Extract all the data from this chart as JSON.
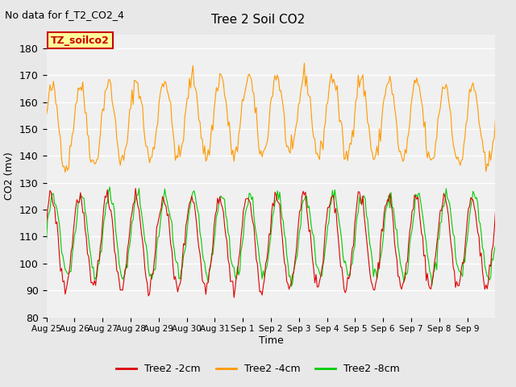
{
  "title": "Tree 2 Soil CO2",
  "subtitle": "No data for f_T2_CO2_4",
  "ylabel": "CO2 (mv)",
  "xlabel": "Time",
  "ylim": [
    80,
    185
  ],
  "yticks": [
    80,
    90,
    100,
    110,
    120,
    130,
    140,
    150,
    160,
    170,
    180
  ],
  "annotation_box": "TZ_soilco2",
  "annotation_color": "#cc0000",
  "annotation_box_color": "#ffff99",
  "line_2cm_color": "#dd0000",
  "line_4cm_color": "#ff9900",
  "line_8cm_color": "#00cc00",
  "background_color": "#e8e8e8",
  "plot_bg_color": "#f0f0f0",
  "grid_color": "#ffffff",
  "n_days": 16,
  "seed": 42,
  "xtick_labels": [
    "Aug 25",
    "Aug 26",
    "Aug 27",
    "Aug 28",
    "Aug 29",
    "Aug 30",
    "Aug 31",
    "Sep 1",
    "Sep 2",
    "Sep 3",
    "Sep 4",
    "Sep 5",
    "Sep 6",
    "Sep 7",
    "Sep 8",
    "Sep 9"
  ],
  "legend_labels": [
    "Tree2 -2cm",
    "Tree2 -4cm",
    "Tree2 -8cm"
  ]
}
